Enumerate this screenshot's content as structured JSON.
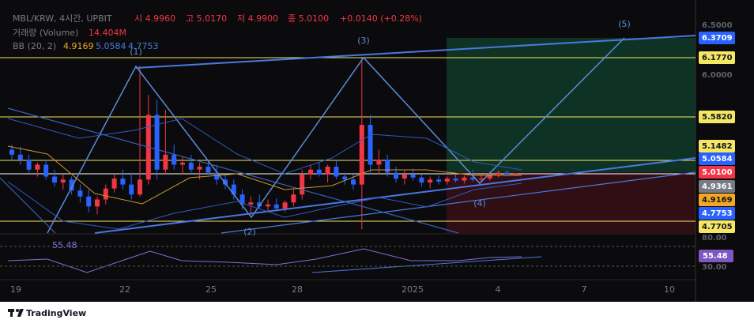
{
  "header": {
    "symbol": "MBL/KRW, 4시간, UPBIT",
    "open": "시 4.9960",
    "high": "고 5.0170",
    "low": "저 4.9900",
    "close": "종 5.0100",
    "change": "+0.0140 (+0.28%)",
    "volume_label": "거래량 (Volume)",
    "volume_value": "14.404M",
    "bb_label": "BB (20, 2)",
    "bb_values": [
      "4.9169",
      "5.0584",
      "4.7753"
    ]
  },
  "waves": [
    "(1)",
    "(2)",
    "(3)",
    "(4)",
    "(5)"
  ],
  "price_axis": [
    "6.5000",
    "6.0000"
  ],
  "price_labels": [
    {
      "text": "6.3709",
      "color": "#2962ff"
    },
    {
      "text": "6.1770",
      "color": "#f5e663"
    },
    {
      "text": "5.5820",
      "color": "#f5e663"
    },
    {
      "text": "5.1482",
      "color": "#f5e663"
    },
    {
      "text": "5.0584",
      "color": "#2962ff"
    },
    {
      "text": "5.0100",
      "color": "#f23645"
    },
    {
      "text": "4.9361",
      "color": "#787b86"
    },
    {
      "text": "4.9169",
      "color": "#f5a623"
    },
    {
      "text": "4.7753",
      "color": "#2962ff"
    },
    {
      "text": "4.7705",
      "color": "#f5e663"
    }
  ],
  "rsi": {
    "value": "55.48",
    "axis": [
      "80.00",
      "30.00"
    ]
  },
  "time_axis": [
    "19",
    "22",
    "25",
    "28",
    "2025",
    "4",
    "7",
    "10"
  ],
  "candles": [
    [
      5.25,
      5.3,
      5.15,
      5.2
    ],
    [
      5.2,
      5.28,
      5.1,
      5.15
    ],
    [
      5.15,
      5.2,
      5.02,
      5.05
    ],
    [
      5.05,
      5.12,
      4.98,
      5.1
    ],
    [
      5.1,
      5.15,
      4.95,
      4.98
    ],
    [
      4.98,
      5.05,
      4.88,
      4.92
    ],
    [
      4.92,
      5.0,
      4.85,
      4.95
    ],
    [
      4.95,
      4.98,
      4.8,
      4.84
    ],
    [
      4.84,
      4.9,
      4.72,
      4.78
    ],
    [
      4.78,
      4.85,
      4.62,
      4.68
    ],
    [
      4.68,
      4.78,
      4.6,
      4.75
    ],
    [
      4.75,
      4.9,
      4.7,
      4.86
    ],
    [
      4.86,
      5.0,
      4.82,
      4.96
    ],
    [
      4.96,
      5.05,
      4.85,
      4.9
    ],
    [
      4.9,
      5.02,
      4.75,
      4.8
    ],
    [
      4.8,
      6.09,
      4.78,
      4.95
    ],
    [
      4.95,
      5.8,
      4.9,
      5.6
    ],
    [
      5.6,
      5.75,
      4.95,
      5.05
    ],
    [
      5.05,
      5.65,
      5.0,
      5.2
    ],
    [
      5.2,
      5.3,
      5.05,
      5.1
    ],
    [
      5.1,
      5.18,
      5.0,
      5.12
    ],
    [
      5.12,
      5.2,
      5.02,
      5.05
    ],
    [
      5.05,
      5.12,
      4.95,
      5.08
    ],
    [
      5.08,
      5.15,
      5.0,
      5.02
    ],
    [
      5.02,
      5.1,
      4.9,
      4.95
    ],
    [
      4.95,
      5.0,
      4.85,
      4.9
    ],
    [
      4.9,
      4.95,
      4.75,
      4.8
    ],
    [
      4.8,
      4.85,
      4.65,
      4.7
    ],
    [
      4.7,
      4.78,
      4.62,
      4.72
    ],
    [
      4.72,
      4.8,
      4.65,
      4.68
    ],
    [
      4.68,
      4.75,
      4.62,
      4.7
    ],
    [
      4.7,
      4.76,
      4.63,
      4.66
    ],
    [
      4.66,
      4.74,
      4.62,
      4.72
    ],
    [
      4.72,
      4.85,
      4.68,
      4.8
    ],
    [
      4.8,
      5.05,
      4.75,
      5.0
    ],
    [
      5.0,
      5.1,
      4.95,
      5.05
    ],
    [
      5.05,
      5.12,
      4.98,
      5.0
    ],
    [
      5.0,
      5.1,
      4.92,
      5.08
    ],
    [
      5.08,
      5.15,
      4.95,
      4.98
    ],
    [
      4.98,
      5.02,
      4.9,
      4.95
    ],
    [
      4.95,
      5.0,
      4.85,
      4.9
    ],
    [
      4.9,
      6.17,
      4.45,
      5.5
    ],
    [
      5.5,
      5.6,
      5.0,
      5.1
    ],
    [
      5.1,
      5.25,
      5.0,
      5.15
    ],
    [
      5.15,
      5.2,
      4.98,
      5.02
    ],
    [
      5.02,
      5.08,
      4.92,
      4.96
    ],
    [
      4.96,
      5.04,
      4.9,
      5.0
    ],
    [
      5.0,
      5.06,
      4.94,
      4.97
    ],
    [
      4.97,
      5.0,
      4.88,
      4.92
    ],
    [
      4.92,
      4.98,
      4.86,
      4.95
    ],
    [
      4.95,
      4.99,
      4.9,
      4.93
    ],
    [
      4.93,
      4.98,
      4.9,
      4.96
    ],
    [
      4.96,
      5.0,
      4.92,
      4.94
    ],
    [
      4.94,
      4.99,
      4.91,
      4.97
    ],
    [
      4.97,
      5.05,
      4.93,
      4.95
    ],
    [
      4.95,
      5.0,
      4.92,
      4.96
    ],
    [
      4.96,
      5.03,
      4.94,
      5.0
    ],
    [
      5.0,
      5.04,
      4.97,
      5.02
    ],
    [
      5.02,
      5.04,
      4.98,
      5.0
    ],
    [
      4.996,
      5.017,
      4.99,
      5.01
    ]
  ],
  "footer": "TradingView"
}
